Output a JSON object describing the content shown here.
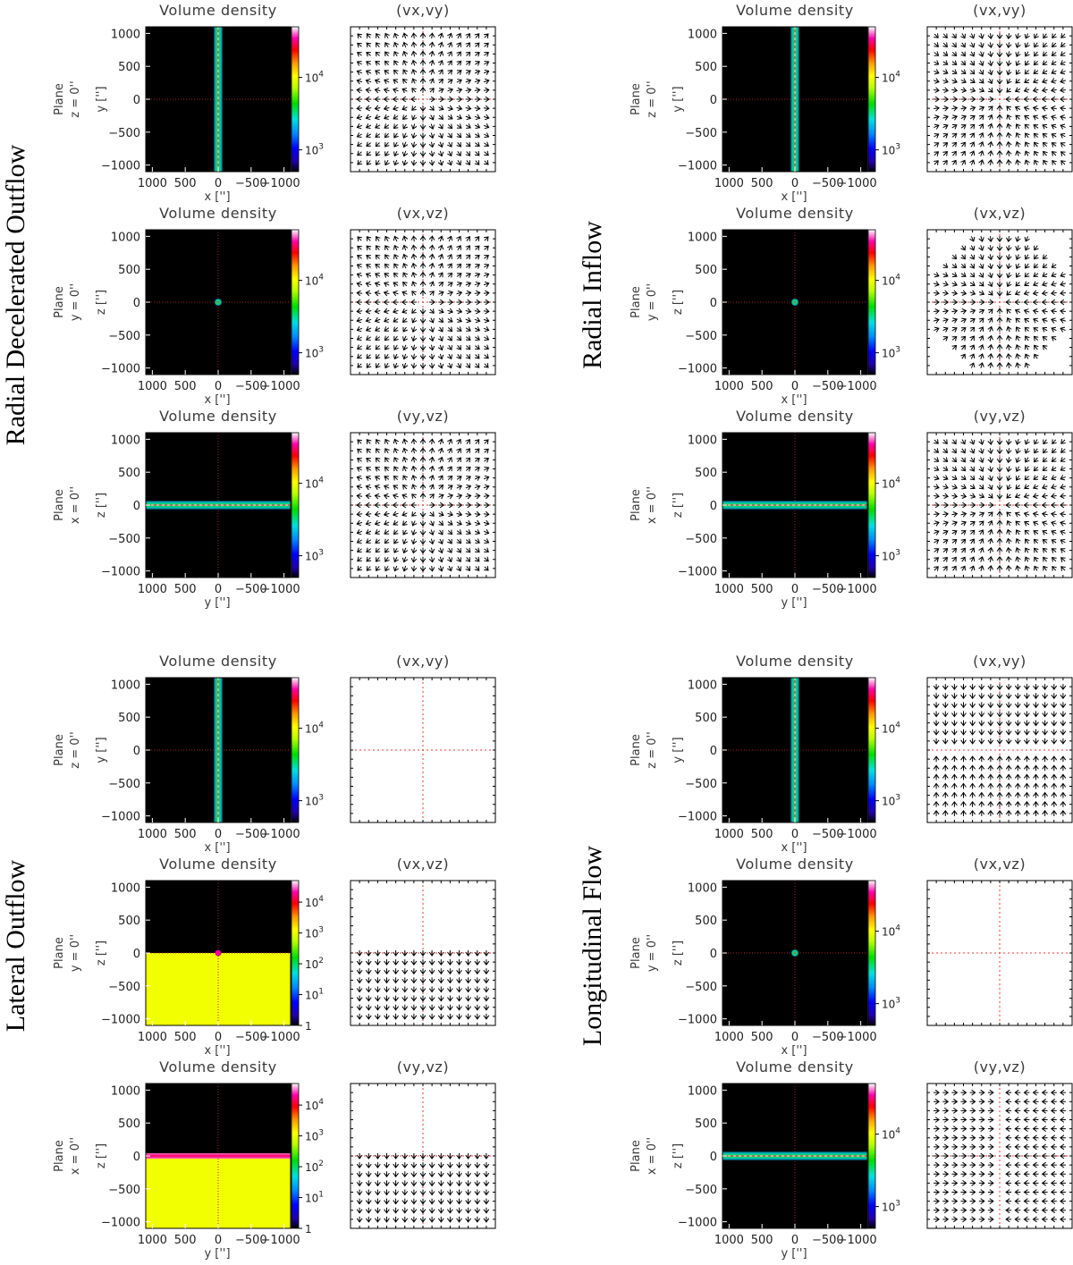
{
  "figure": {
    "quadrants": [
      {
        "title": "Radial Decelerated Outflow",
        "rows": [
          {
            "plane_label": [
              "Plane",
              "z = 0''"
            ],
            "density_title": "Volume density",
            "density_style": "vstrip",
            "density_xlabel": "x ['']",
            "density_ylabel": "y ['']",
            "cbar_ticks": [
              {
                "value": 1000,
                "label": "10^3"
              },
              {
                "value": 10000,
                "label": "10^4"
              }
            ],
            "cbar_range": [
              500,
              50000
            ],
            "vec_title": "(vx,vy)",
            "vec_pattern": "radial_out",
            "vec_mode": "xy"
          },
          {
            "plane_label": [
              "Plane",
              "y = 0''"
            ],
            "density_title": "Volume density",
            "density_style": "dot",
            "density_xlabel": "x ['']",
            "density_ylabel": "z ['']",
            "cbar_ticks": [
              {
                "value": 1000,
                "label": "10^3"
              },
              {
                "value": 10000,
                "label": "10^4"
              }
            ],
            "cbar_range": [
              500,
              50000
            ],
            "vec_title": "(vx,vz)",
            "vec_pattern": "radial_out",
            "vec_mode": "xz"
          },
          {
            "plane_label": [
              "Plane",
              "x = 0''"
            ],
            "density_title": "Volume density",
            "density_style": "hstrip",
            "density_xlabel": "y ['']",
            "density_ylabel": "z ['']",
            "cbar_ticks": [
              {
                "value": 1000,
                "label": "10^3"
              },
              {
                "value": 10000,
                "label": "10^4"
              }
            ],
            "cbar_range": [
              500,
              50000
            ],
            "vec_title": "(vy,vz)",
            "vec_pattern": "radial_out",
            "vec_mode": "yz"
          }
        ]
      },
      {
        "title": "Radial Inflow",
        "rows": [
          {
            "plane_label": [
              "Plane",
              "z = 0''"
            ],
            "density_title": "Volume density",
            "density_style": "vstrip",
            "density_xlabel": "x ['']",
            "density_ylabel": "y ['']",
            "cbar_ticks": [
              {
                "value": 1000,
                "label": "10^3"
              },
              {
                "value": 10000,
                "label": "10^4"
              }
            ],
            "cbar_range": [
              500,
              50000
            ],
            "vec_title": "(vx,vy)",
            "vec_pattern": "radial_in",
            "vec_mode": "xy"
          },
          {
            "plane_label": [
              "Plane",
              "y = 0''"
            ],
            "density_title": "Volume density",
            "density_style": "dot",
            "density_xlabel": "x ['']",
            "density_ylabel": "z ['']",
            "cbar_ticks": [
              {
                "value": 1000,
                "label": "10^3"
              },
              {
                "value": 10000,
                "label": "10^4"
              }
            ],
            "cbar_range": [
              500,
              50000
            ],
            "vec_title": "(vx,vz)",
            "vec_pattern": "radial_in_disk",
            "vec_mode": "xz"
          },
          {
            "plane_label": [
              "Plane",
              "x = 0''"
            ],
            "density_title": "Volume density",
            "density_style": "hstrip",
            "density_xlabel": "y ['']",
            "density_ylabel": "z ['']",
            "cbar_ticks": [
              {
                "value": 1000,
                "label": "10^3"
              },
              {
                "value": 10000,
                "label": "10^4"
              }
            ],
            "cbar_range": [
              500,
              50000
            ],
            "vec_title": "(vy,vz)",
            "vec_pattern": "radial_in",
            "vec_mode": "yz"
          }
        ]
      },
      {
        "title": "Lateral Outflow",
        "rows": [
          {
            "plane_label": [
              "Plane",
              "z = 0''"
            ],
            "density_title": "Volume density",
            "density_style": "vstrip",
            "density_xlabel": "x ['']",
            "density_ylabel": "y ['']",
            "cbar_ticks": [
              {
                "value": 1000,
                "label": "10^3"
              },
              {
                "value": 10000,
                "label": "10^4"
              }
            ],
            "cbar_range": [
              500,
              50000
            ],
            "vec_title": "(vx,vy)",
            "vec_pattern": "none",
            "vec_mode": "xy"
          },
          {
            "plane_label": [
              "Plane",
              "y = 0''"
            ],
            "density_title": "Volume density",
            "density_style": "yellow_dot",
            "density_xlabel": "x ['']",
            "density_ylabel": "z ['']",
            "cbar_ticks": [
              {
                "value": 1,
                "label": "1"
              },
              {
                "value": 10,
                "label": "10^1"
              },
              {
                "value": 100,
                "label": "10^2"
              },
              {
                "value": 1000,
                "label": "10^3"
              },
              {
                "value": 10000,
                "label": "10^4"
              }
            ],
            "cbar_range": [
              1,
              50000
            ],
            "vec_title": "(vx,vz)",
            "vec_pattern": "down_lower",
            "vec_mode": "xz"
          },
          {
            "plane_label": [
              "Plane",
              "x = 0''"
            ],
            "density_title": "Volume density",
            "density_style": "yellow_strip",
            "density_xlabel": "y ['']",
            "density_ylabel": "z ['']",
            "cbar_ticks": [
              {
                "value": 1,
                "label": "1"
              },
              {
                "value": 10,
                "label": "10^1"
              },
              {
                "value": 100,
                "label": "10^2"
              },
              {
                "value": 1000,
                "label": "10^3"
              },
              {
                "value": 10000,
                "label": "10^4"
              }
            ],
            "cbar_range": [
              1,
              50000
            ],
            "vec_title": "(vy,vz)",
            "vec_pattern": "down_lower",
            "vec_mode": "yz"
          }
        ]
      },
      {
        "title": "Longitudinal Flow",
        "rows": [
          {
            "plane_label": [
              "Plane",
              "z = 0''"
            ],
            "density_title": "Volume density",
            "density_style": "vstrip",
            "density_xlabel": "x ['']",
            "density_ylabel": "y ['']",
            "cbar_ticks": [
              {
                "value": 1000,
                "label": "10^3"
              },
              {
                "value": 10000,
                "label": "10^4"
              }
            ],
            "cbar_range": [
              500,
              50000
            ],
            "vec_title": "(vx,vy)",
            "vec_pattern": "toward_y0",
            "vec_mode": "xy"
          },
          {
            "plane_label": [
              "Plane",
              "y = 0''"
            ],
            "density_title": "Volume density",
            "density_style": "dot",
            "density_xlabel": "x ['']",
            "density_ylabel": "z ['']",
            "cbar_ticks": [
              {
                "value": 1000,
                "label": "10^3"
              },
              {
                "value": 10000,
                "label": "10^4"
              }
            ],
            "cbar_range": [
              500,
              50000
            ],
            "vec_title": "(vx,vz)",
            "vec_pattern": "none",
            "vec_mode": "xz"
          },
          {
            "plane_label": [
              "Plane",
              "x = 0''"
            ],
            "density_title": "Volume density",
            "density_style": "hstrip",
            "density_xlabel": "y ['']",
            "density_ylabel": "z ['']",
            "cbar_ticks": [
              {
                "value": 1000,
                "label": "10^3"
              },
              {
                "value": 10000,
                "label": "10^4"
              }
            ],
            "cbar_range": [
              500,
              50000
            ],
            "vec_title": "(vy,vz)",
            "vec_pattern": "toward_h0",
            "vec_mode": "yz"
          }
        ]
      }
    ],
    "axis": {
      "x_range": [
        1100,
        -1100
      ],
      "y_range": [
        -1100,
        1100
      ],
      "x_ticks": [
        {
          "value": 1000,
          "label": "1000"
        },
        {
          "value": 500,
          "label": "500"
        },
        {
          "value": 0,
          "label": "0"
        },
        {
          "value": -500,
          "label": "−500"
        },
        {
          "value": -1000,
          "label": "−1000"
        }
      ],
      "y_ticks": [
        {
          "value": 1000,
          "label": "1000"
        },
        {
          "value": 500,
          "label": "500"
        },
        {
          "value": 0,
          "label": "0"
        },
        {
          "value": -500,
          "label": "−500"
        },
        {
          "value": -1000,
          "label": "−1000"
        }
      ]
    },
    "colors": {
      "background_density": "#000000",
      "lateral_fill": "#f2ff00",
      "center_lines": "#ff3333",
      "arrows": "#000000",
      "frame": "#000000"
    }
  }
}
